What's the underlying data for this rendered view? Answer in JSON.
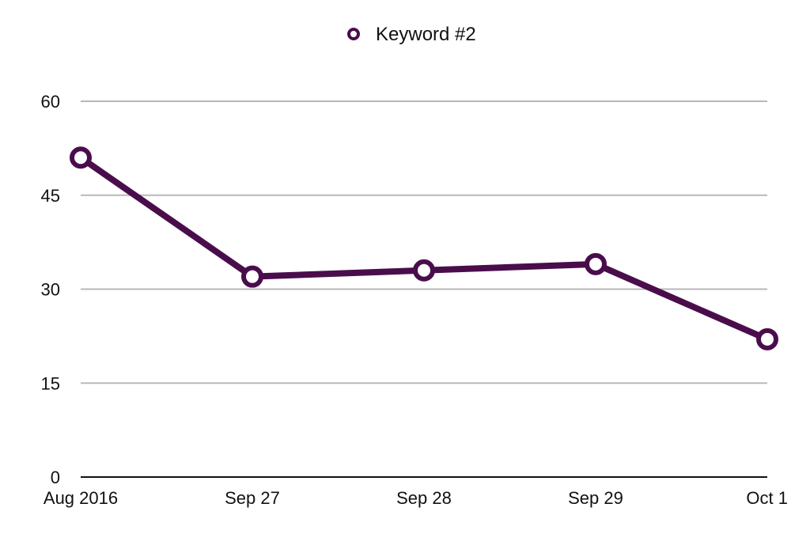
{
  "chart_data": {
    "type": "line",
    "title": "",
    "xlabel": "",
    "ylabel": "",
    "categories": [
      "Aug 2016",
      "Sep 27",
      "Sep 28",
      "Sep 29",
      "Oct 1"
    ],
    "series": [
      {
        "name": "Keyword #2",
        "values": [
          51,
          32,
          33,
          34,
          22
        ]
      }
    ],
    "ylim": [
      0,
      60
    ],
    "y_ticks": [
      0,
      15,
      30,
      45,
      60
    ],
    "grid": true,
    "legend_position": "top-center",
    "colors": {
      "series": "#4a0d4c",
      "grid": "#b8b8b8",
      "axis": "#111111",
      "text": "#111111",
      "marker_fill": "#ffffff"
    }
  }
}
